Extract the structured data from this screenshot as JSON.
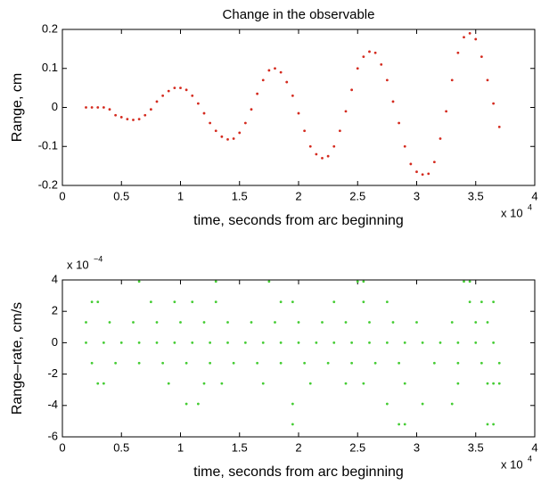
{
  "chart_data": [
    {
      "type": "scatter",
      "title": "Change in the observable",
      "xlabel": "time, seconds from arc beginning",
      "ylabel": "Range, cm",
      "x_scale_label": {
        "base": "x 10",
        "exponent": "4"
      },
      "color": "#d42a1e",
      "xlim": [
        0,
        4
      ],
      "xticks": [
        0,
        0.5,
        1,
        1.5,
        2,
        2.5,
        3,
        3.5,
        4
      ],
      "ylim": [
        -0.2,
        0.2
      ],
      "yticks": [
        -0.2,
        -0.1,
        0,
        0.1,
        0.2
      ],
      "x": [
        0.2,
        0.25,
        0.3,
        0.35,
        0.4,
        0.45,
        0.5,
        0.55,
        0.6,
        0.65,
        0.7,
        0.75,
        0.8,
        0.85,
        0.9,
        0.95,
        1.0,
        1.05,
        1.1,
        1.15,
        1.2,
        1.25,
        1.3,
        1.35,
        1.4,
        1.45,
        1.5,
        1.55,
        1.6,
        1.65,
        1.7,
        1.75,
        1.8,
        1.85,
        1.9,
        1.95,
        2.0,
        2.05,
        2.1,
        2.15,
        2.2,
        2.25,
        2.3,
        2.35,
        2.4,
        2.45,
        2.5,
        2.55,
        2.6,
        2.65,
        2.7,
        2.75,
        2.8,
        2.85,
        2.9,
        2.95,
        3.0,
        3.05,
        3.1,
        3.15,
        3.2,
        3.25,
        3.3,
        3.35,
        3.4,
        3.45,
        3.5,
        3.55,
        3.6,
        3.65,
        3.7
      ],
      "values": [
        0,
        0,
        0,
        0,
        -0.005,
        -0.02,
        -0.025,
        -0.03,
        -0.032,
        -0.03,
        -0.02,
        -0.005,
        0.015,
        0.03,
        0.042,
        0.05,
        0.05,
        0.045,
        0.03,
        0.01,
        -0.015,
        -0.04,
        -0.06,
        -0.075,
        -0.082,
        -0.08,
        -0.065,
        -0.04,
        -0.005,
        0.035,
        0.07,
        0.095,
        0.1,
        0.09,
        0.065,
        0.03,
        -0.015,
        -0.06,
        -0.1,
        -0.12,
        -0.13,
        -0.125,
        -0.1,
        -0.06,
        -0.01,
        0.045,
        0.1,
        0.13,
        0.143,
        0.14,
        0.11,
        0.07,
        0.015,
        -0.04,
        -0.1,
        -0.145,
        -0.165,
        -0.172,
        -0.17,
        -0.14,
        -0.08,
        -0.01,
        0.07,
        0.14,
        0.18,
        0.19,
        0.175,
        0.13,
        0.07,
        0.01,
        -0.05
      ]
    },
    {
      "type": "scatter",
      "xlabel": "time, seconds from arc beginning",
      "ylabel": "Range–rate, cm/s",
      "x_scale_label": {
        "base": "x 10",
        "exponent": "4"
      },
      "y_scale_label": {
        "base": "x 10",
        "exponent": "−4"
      },
      "color": "#44cc33",
      "xlim": [
        0,
        4
      ],
      "xticks": [
        0,
        0.5,
        1,
        1.5,
        2,
        2.5,
        3,
        3.5,
        4
      ],
      "ylim": [
        -6,
        4
      ],
      "yticks": [
        -6,
        -4,
        -2,
        0,
        2,
        4
      ],
      "x": [
        0.2,
        0.35,
        0.5,
        0.65,
        0.8,
        0.95,
        1.1,
        1.25,
        1.4,
        1.55,
        1.7,
        1.85,
        2.0,
        2.15,
        2.3,
        2.45,
        2.6,
        2.75,
        2.9,
        3.05,
        3.2,
        3.35,
        3.5,
        3.65,
        0.2,
        0.4,
        0.6,
        0.8,
        1.0,
        1.2,
        1.4,
        1.6,
        1.8,
        2.0,
        2.2,
        2.4,
        2.6,
        2.8,
        3.0,
        3.3,
        3.5,
        3.6,
        0.25,
        0.45,
        0.65,
        0.85,
        1.05,
        1.25,
        1.45,
        1.65,
        1.85,
        2.05,
        2.25,
        2.45,
        2.65,
        2.85,
        3.15,
        3.35,
        3.55,
        3.7,
        0.25,
        0.3,
        0.75,
        0.95,
        1.1,
        1.3,
        1.85,
        1.95,
        2.3,
        2.55,
        2.75,
        3.45,
        3.55,
        3.65,
        0.3,
        0.35,
        0.9,
        1.2,
        1.35,
        1.7,
        2.1,
        2.4,
        2.55,
        2.9,
        3.35,
        3.6,
        3.65,
        3.7,
        0.65,
        1.3,
        1.75,
        2.5,
        2.55,
        3.4,
        3.45,
        1.05,
        1.15,
        1.95,
        2.75,
        3.05,
        3.3,
        1.95,
        2.85,
        2.9,
        3.6,
        3.65
      ],
      "values": [
        0,
        0,
        0,
        0,
        0,
        0,
        0,
        0,
        0,
        0,
        0,
        0,
        0,
        0,
        0,
        0,
        0,
        0,
        0,
        0,
        0,
        0,
        0,
        0,
        1.3,
        1.3,
        1.3,
        1.3,
        1.3,
        1.3,
        1.3,
        1.3,
        1.3,
        1.3,
        1.3,
        1.3,
        1.3,
        1.3,
        1.3,
        1.3,
        1.3,
        1.3,
        -1.3,
        -1.3,
        -1.3,
        -1.3,
        -1.3,
        -1.3,
        -1.3,
        -1.3,
        -1.3,
        -1.3,
        -1.3,
        -1.3,
        -1.3,
        -1.3,
        -1.3,
        -1.3,
        -1.3,
        -1.3,
        2.6,
        2.6,
        2.6,
        2.6,
        2.6,
        2.6,
        2.6,
        2.6,
        2.6,
        2.6,
        2.6,
        2.6,
        2.6,
        2.6,
        -2.6,
        -2.6,
        -2.6,
        -2.6,
        -2.6,
        -2.6,
        -2.6,
        -2.6,
        -2.6,
        -2.6,
        -2.6,
        -2.6,
        -2.6,
        -2.6,
        3.9,
        3.9,
        3.9,
        3.9,
        3.9,
        3.9,
        3.9,
        -3.9,
        -3.9,
        -3.9,
        -3.9,
        -3.9,
        -3.9,
        -5.2,
        -5.2,
        -5.2,
        -5.2,
        -5.2
      ]
    }
  ]
}
